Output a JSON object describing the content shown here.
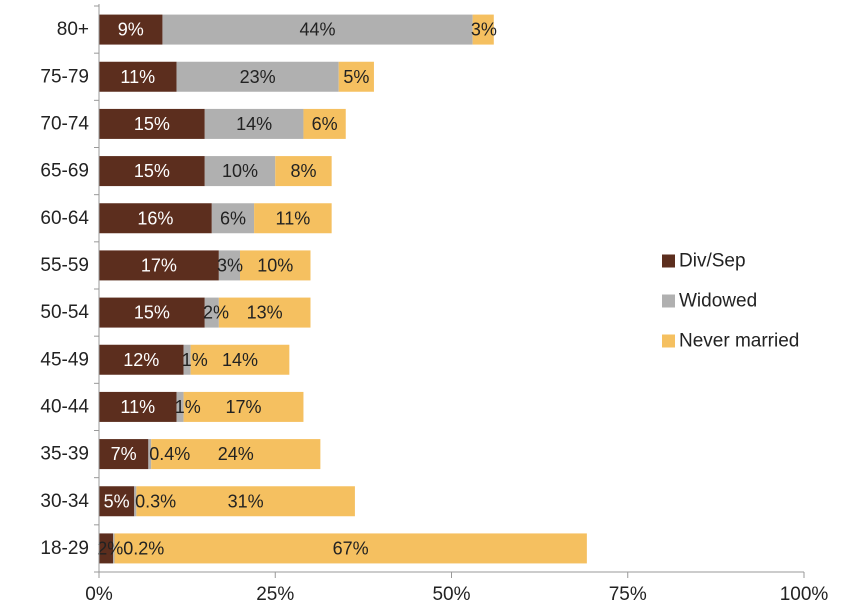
{
  "chart_data": {
    "type": "bar",
    "orientation": "horizontal",
    "stacked": true,
    "categories": [
      "80+",
      "75-79",
      "70-74",
      "65-69",
      "60-64",
      "55-59",
      "50-54",
      "45-49",
      "40-44",
      "35-39",
      "30-34",
      "18-29"
    ],
    "series": [
      {
        "name": "Div/Sep",
        "color": "#5C2E1E",
        "values": [
          9,
          11,
          15,
          15,
          16,
          17,
          15,
          12,
          11,
          7,
          5,
          2
        ],
        "labels": [
          "9%",
          "11%",
          "15%",
          "15%",
          "16%",
          "17%",
          "15%",
          "12%",
          "11%",
          "7%",
          "5%",
          "2%"
        ]
      },
      {
        "name": "Widowed",
        "color": "#B0B0B0",
        "values": [
          44,
          23,
          14,
          10,
          6,
          3,
          2,
          1,
          1,
          0.4,
          0.3,
          0.2
        ],
        "labels": [
          "44%",
          "23%",
          "14%",
          "10%",
          "6%",
          "3%",
          "2%",
          "1%",
          "1%",
          "0.4%",
          "0.3%",
          "0.2%"
        ]
      },
      {
        "name": "Never married",
        "color": "#F5C060",
        "values": [
          3,
          5,
          6,
          8,
          11,
          10,
          13,
          14,
          17,
          24,
          31,
          67
        ],
        "labels": [
          "3%",
          "5%",
          "6%",
          "8%",
          "11%",
          "10%",
          "13%",
          "14%",
          "17%",
          "24%",
          "31%",
          "67%"
        ]
      }
    ],
    "xlim": [
      0,
      100
    ],
    "xticks": [
      0,
      25,
      50,
      75,
      100
    ],
    "xtick_labels": [
      "0%",
      "25%",
      "50%",
      "75%",
      "100%"
    ],
    "title": "",
    "xlabel": "",
    "ylabel": "",
    "grid": false,
    "legend_position": "right"
  }
}
